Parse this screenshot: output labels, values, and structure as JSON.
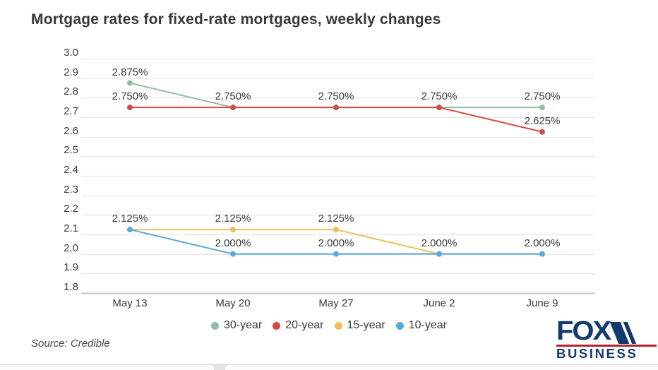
{
  "page": {
    "title": "Mortgage rates for fixed-rate mortgages, weekly changes",
    "source": "Source: Credible"
  },
  "logo": {
    "fox": "FOX",
    "business": "BUSINESS",
    "navy": "#123a6d",
    "red": "#b12331"
  },
  "chart_data": {
    "type": "line",
    "title": "Mortgage rates for fixed-rate mortgages, weekly changes",
    "categories": [
      "May 13",
      "May 20",
      "May 27",
      "June 2",
      "June 9"
    ],
    "series": [
      {
        "name": "30-year",
        "color": "#90bda0",
        "values": [
          2.875,
          2.75,
          2.75,
          2.75,
          2.75
        ]
      },
      {
        "name": "20-year",
        "color": "#d24b46",
        "values": [
          2.75,
          2.75,
          2.75,
          2.75,
          2.625
        ]
      },
      {
        "name": "15-year",
        "color": "#eac158",
        "values": [
          2.125,
          2.125,
          2.125,
          2.0,
          2.0
        ]
      },
      {
        "name": "10-year",
        "color": "#58a9dc",
        "values": [
          2.125,
          2.0,
          2.0,
          2.0,
          2.0
        ]
      }
    ],
    "point_labels": {
      "format": "3-decimals-percent",
      "examples": [
        "2.875%",
        "2.750%",
        "2.625%",
        "2.125%",
        "2.000%"
      ]
    },
    "xlabel": "",
    "ylabel": "",
    "ylim": [
      1.8,
      3.0
    ],
    "ytick_step": 0.1,
    "grid": true,
    "legend_position": "bottom",
    "colors": {
      "grid": "#e6e6e6",
      "axis": "#c7c7c7",
      "text": "#3a3a3a"
    }
  }
}
